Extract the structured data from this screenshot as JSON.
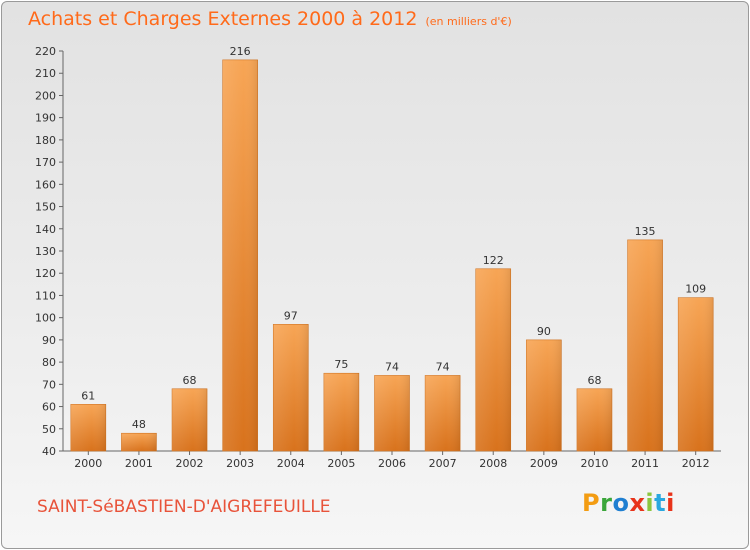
{
  "header": {
    "title": "Achats et Charges Externes 2000 à 2012",
    "subtitle": "(en milliers d'€)"
  },
  "footer": {
    "commune": "SAINT-SéBASTIEN-D'AIGREFEUILLE",
    "brand": "Proxiti",
    "brand_colors": [
      "#f39c12",
      "#3aa63a",
      "#1f7fd1",
      "#e8331a",
      "#8cc63f",
      "#29a8e0",
      "#e8331a"
    ]
  },
  "chart_data": {
    "type": "bar",
    "title": "Achats et Charges Externes 2000 à 2012",
    "subtitle": "(en milliers d'€)",
    "xlabel": "",
    "ylabel": "",
    "categories": [
      "2000",
      "2001",
      "2002",
      "2003",
      "2004",
      "2005",
      "2006",
      "2007",
      "2008",
      "2009",
      "2010",
      "2011",
      "2012"
    ],
    "values": [
      61,
      48,
      68,
      216,
      97,
      75,
      74,
      74,
      122,
      90,
      68,
      135,
      109
    ],
    "ylim": [
      40,
      220
    ],
    "ytick_step": 10,
    "grid": false,
    "legend": "none",
    "bar_color": "#f28a2e"
  }
}
